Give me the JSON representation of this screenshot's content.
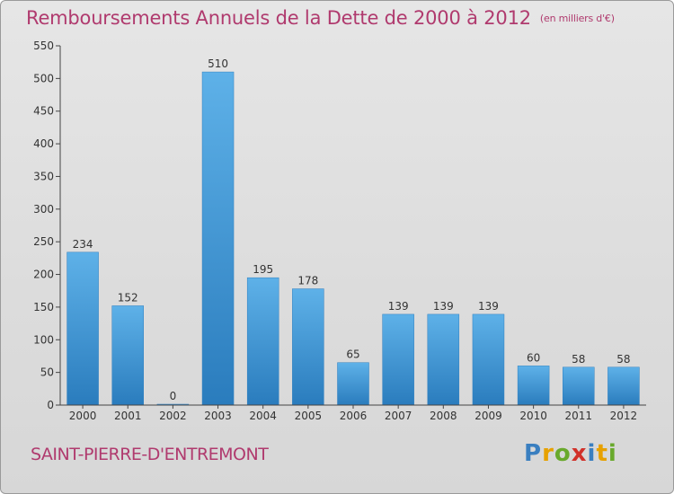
{
  "title": "Remboursements Annuels de la Dette de 2000 à 2012",
  "title_unit": "(en milliers d'€)",
  "city": "SAINT-PIERRE-D'ENTREMONT",
  "logo": "Proxiti",
  "colors": {
    "title": "#b03a6e",
    "bar_light": "#5aaee6",
    "bar_dark": "#2a7fc0",
    "background": "#e0e0e0"
  },
  "chart_data": {
    "type": "bar",
    "title": "Remboursements Annuels de la Dette de 2000 à 2012",
    "xlabel": "",
    "ylabel": "",
    "categories": [
      "2000",
      "2001",
      "2002",
      "2003",
      "2004",
      "2005",
      "2006",
      "2007",
      "2008",
      "2009",
      "2010",
      "2011",
      "2012"
    ],
    "values": [
      234,
      152,
      0,
      510,
      195,
      178,
      65,
      139,
      139,
      139,
      60,
      58,
      58
    ],
    "ylim": [
      0,
      550
    ],
    "yticks": [
      0,
      50,
      100,
      150,
      200,
      250,
      300,
      350,
      400,
      450,
      500,
      550
    ],
    "grid": false,
    "legend": "none"
  }
}
